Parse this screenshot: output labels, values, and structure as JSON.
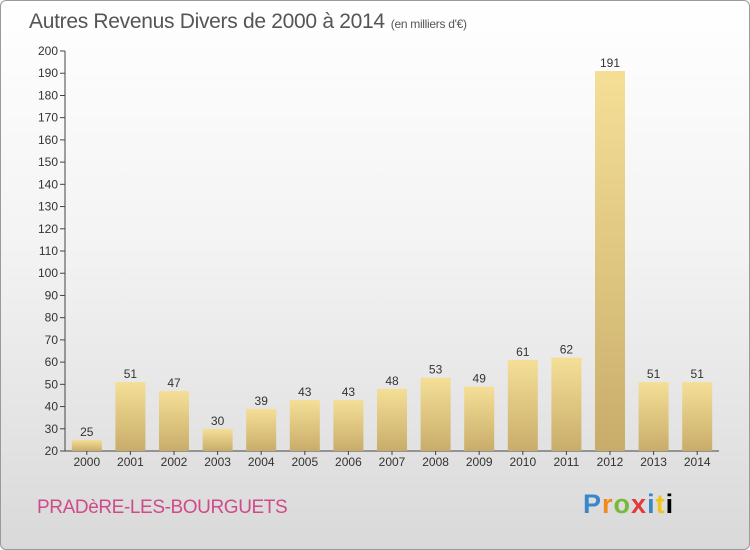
{
  "header": {
    "title": "Autres Revenus Divers de 2000 à 2014",
    "unit": "(en milliers d'€)"
  },
  "footer": {
    "city": "PRADèRE-LES-BOURGUETS",
    "logo_letters": [
      "P",
      "r",
      "o",
      "x",
      "i",
      "t",
      "i"
    ]
  },
  "colors": {
    "bar_light": "#f5df97",
    "bar_dark": "#c8ad6a",
    "city": "#d04a8a"
  },
  "chart_data": {
    "type": "bar",
    "title": "Autres Revenus Divers de 2000 à 2014",
    "subtitle": "(en milliers d'€)",
    "xlabel": "",
    "ylabel": "",
    "categories": [
      "2000",
      "2001",
      "2002",
      "2003",
      "2004",
      "2005",
      "2006",
      "2007",
      "2008",
      "2009",
      "2010",
      "2011",
      "2012",
      "2013",
      "2014"
    ],
    "values": [
      25,
      51,
      47,
      30,
      39,
      43,
      43,
      48,
      53,
      49,
      61,
      62,
      191,
      51,
      51
    ],
    "ylim": [
      20,
      200
    ],
    "yticks": [
      20,
      30,
      40,
      50,
      60,
      70,
      80,
      90,
      100,
      110,
      120,
      130,
      140,
      150,
      160,
      170,
      180,
      190,
      200
    ],
    "data_labels": true,
    "grid": false,
    "legend": "none"
  }
}
